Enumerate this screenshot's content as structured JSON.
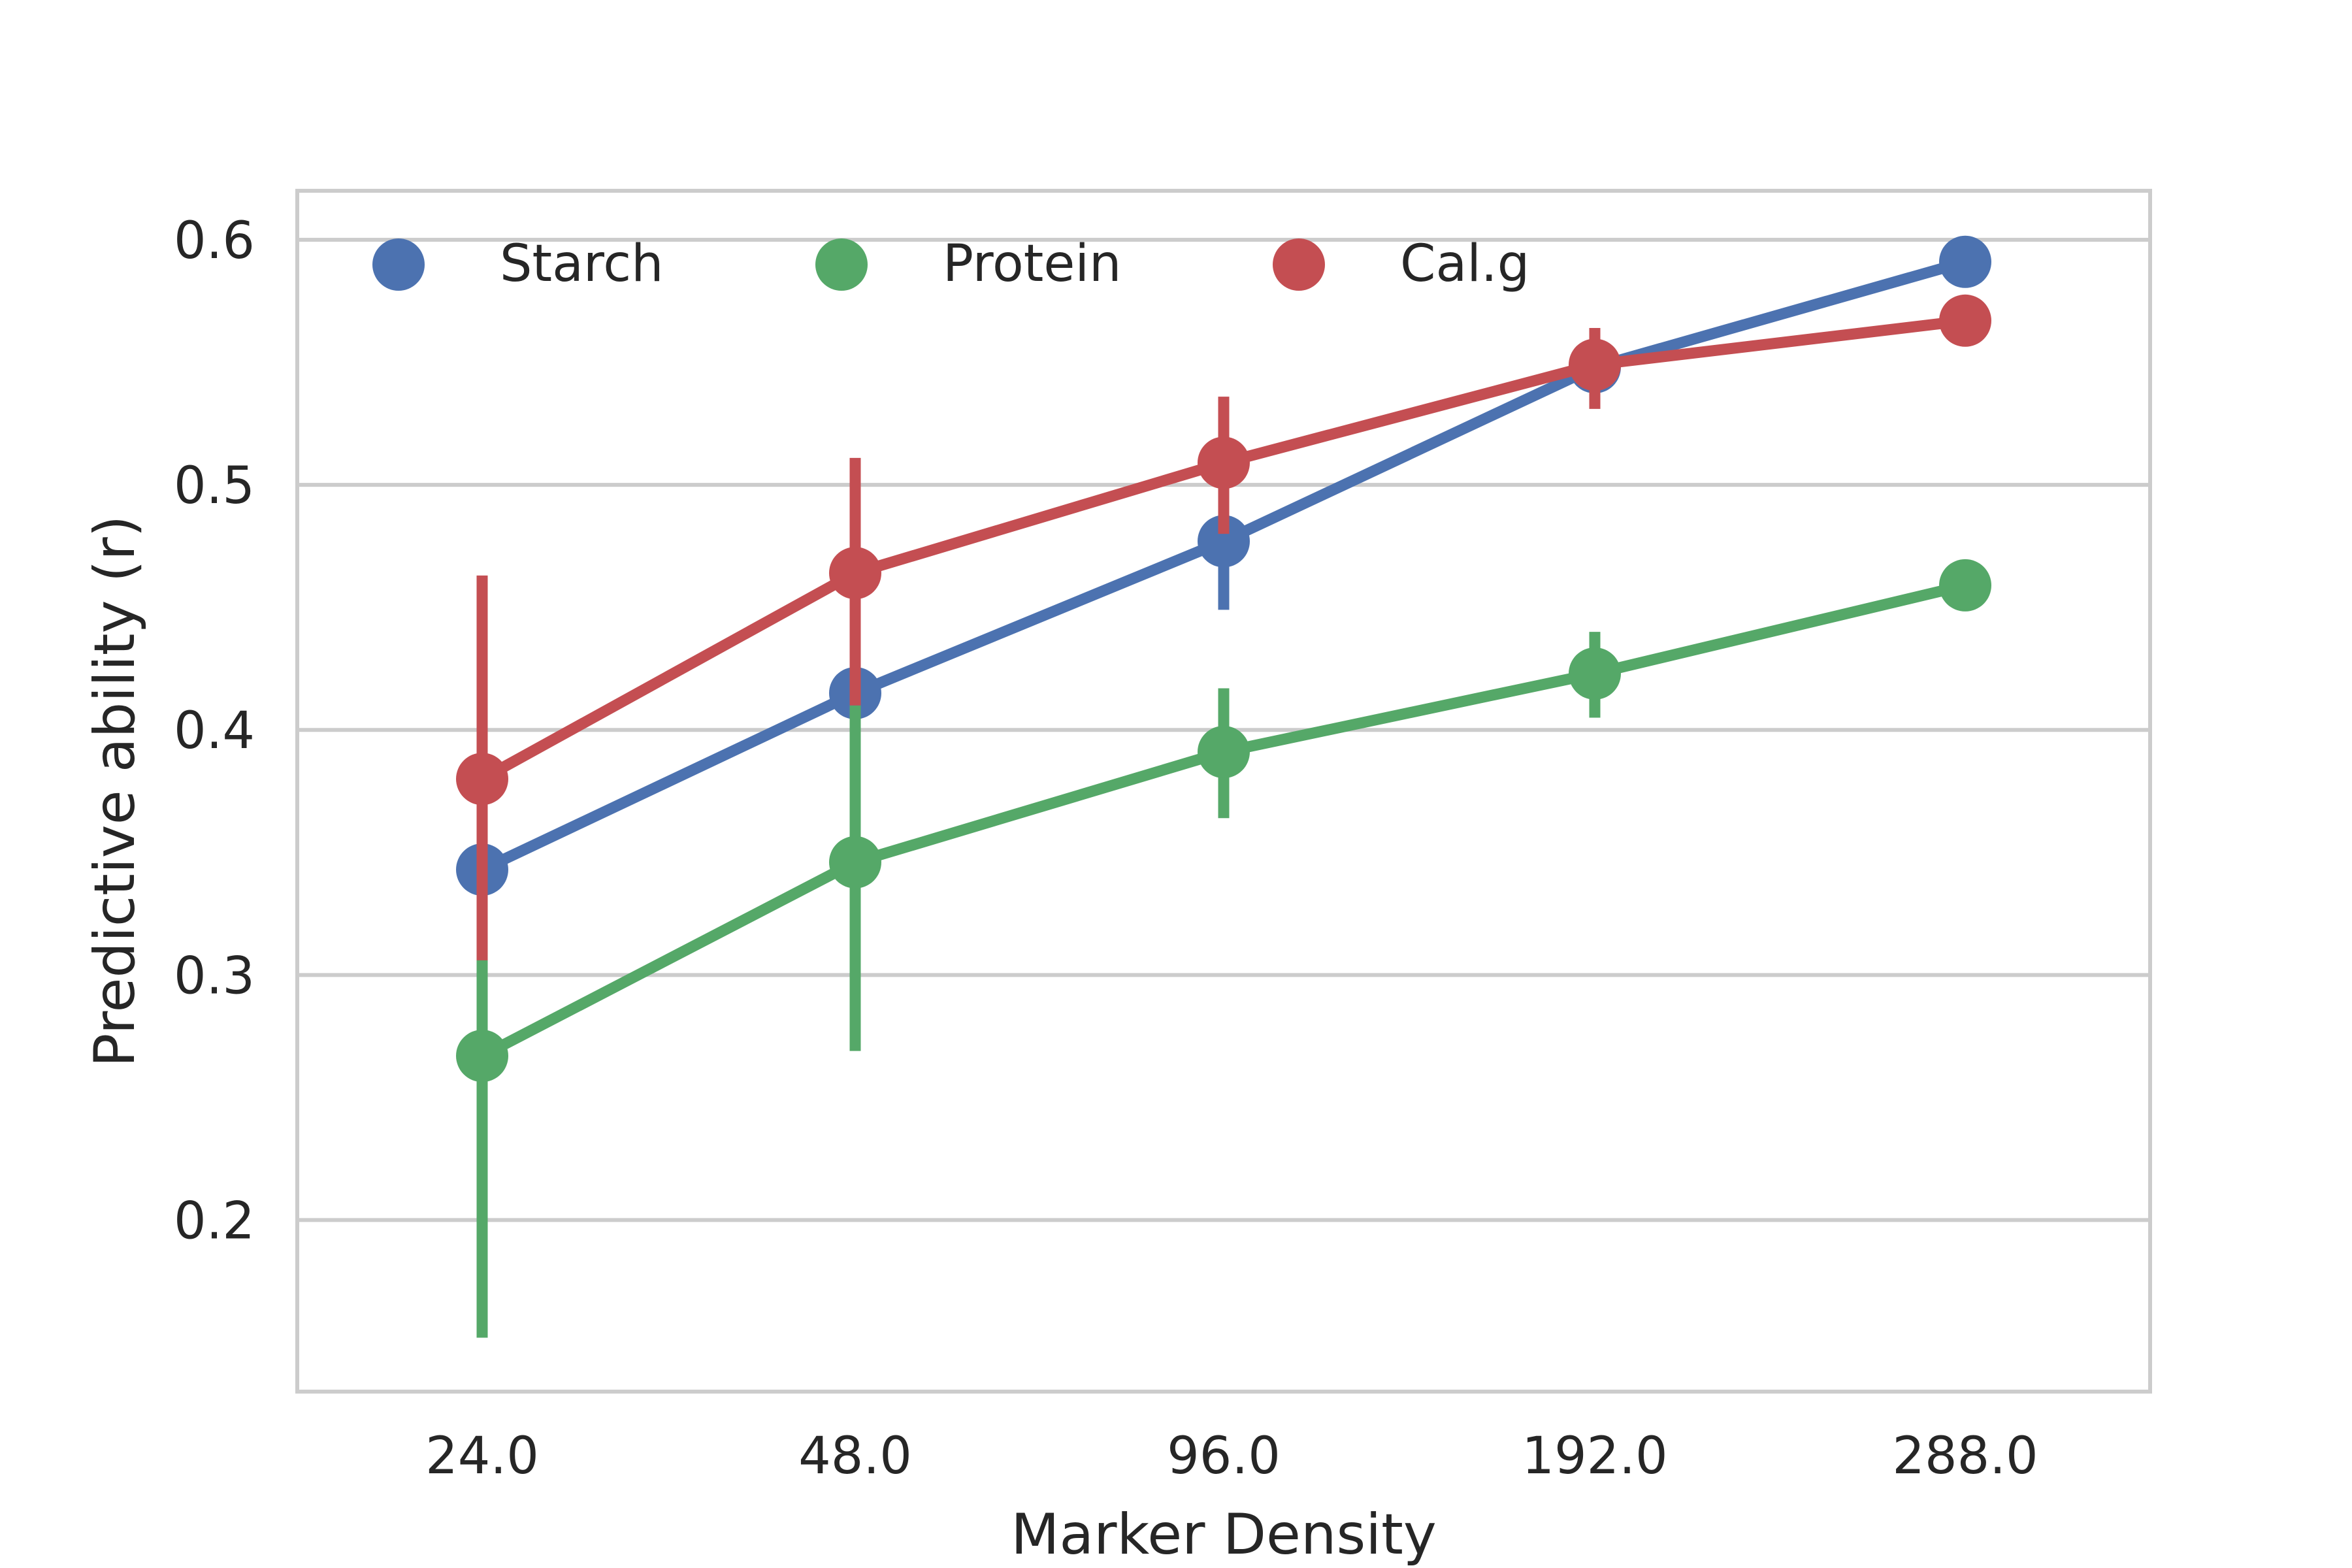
{
  "chart_data": {
    "type": "line",
    "title": "",
    "xlabel": "Marker Density",
    "ylabel": "Predictive ability (r)",
    "categories": [
      "24.0",
      "48.0",
      "96.0",
      "192.0",
      "288.0"
    ],
    "ylim": [
      0.13,
      0.62
    ],
    "yticks": [
      "0.2",
      "0.3",
      "0.4",
      "0.5",
      "0.6"
    ],
    "grid": "horizontal",
    "legend_position": "top-left",
    "series": [
      {
        "name": "Starch",
        "color": "#4c72b0",
        "values": [
          0.343,
          0.415,
          0.477,
          0.548,
          0.591
        ],
        "err_low": [
          0.343,
          0.415,
          0.449,
          0.548,
          0.591
        ],
        "err_high": [
          0.343,
          0.415,
          0.488,
          0.548,
          0.591
        ]
      },
      {
        "name": "Protein",
        "color": "#55a868",
        "values": [
          0.267,
          0.346,
          0.391,
          0.423,
          0.459
        ],
        "err_low": [
          0.152,
          0.269,
          0.364,
          0.405,
          0.459
        ],
        "err_high": [
          0.332,
          0.41,
          0.417,
          0.44,
          0.459
        ]
      },
      {
        "name": "Cal.g",
        "color": "#c44e52",
        "values": [
          0.38,
          0.464,
          0.509,
          0.549,
          0.567
        ],
        "err_low": [
          0.306,
          0.41,
          0.48,
          0.531,
          0.567
        ],
        "err_high": [
          0.463,
          0.511,
          0.536,
          0.564,
          0.567
        ]
      }
    ]
  }
}
